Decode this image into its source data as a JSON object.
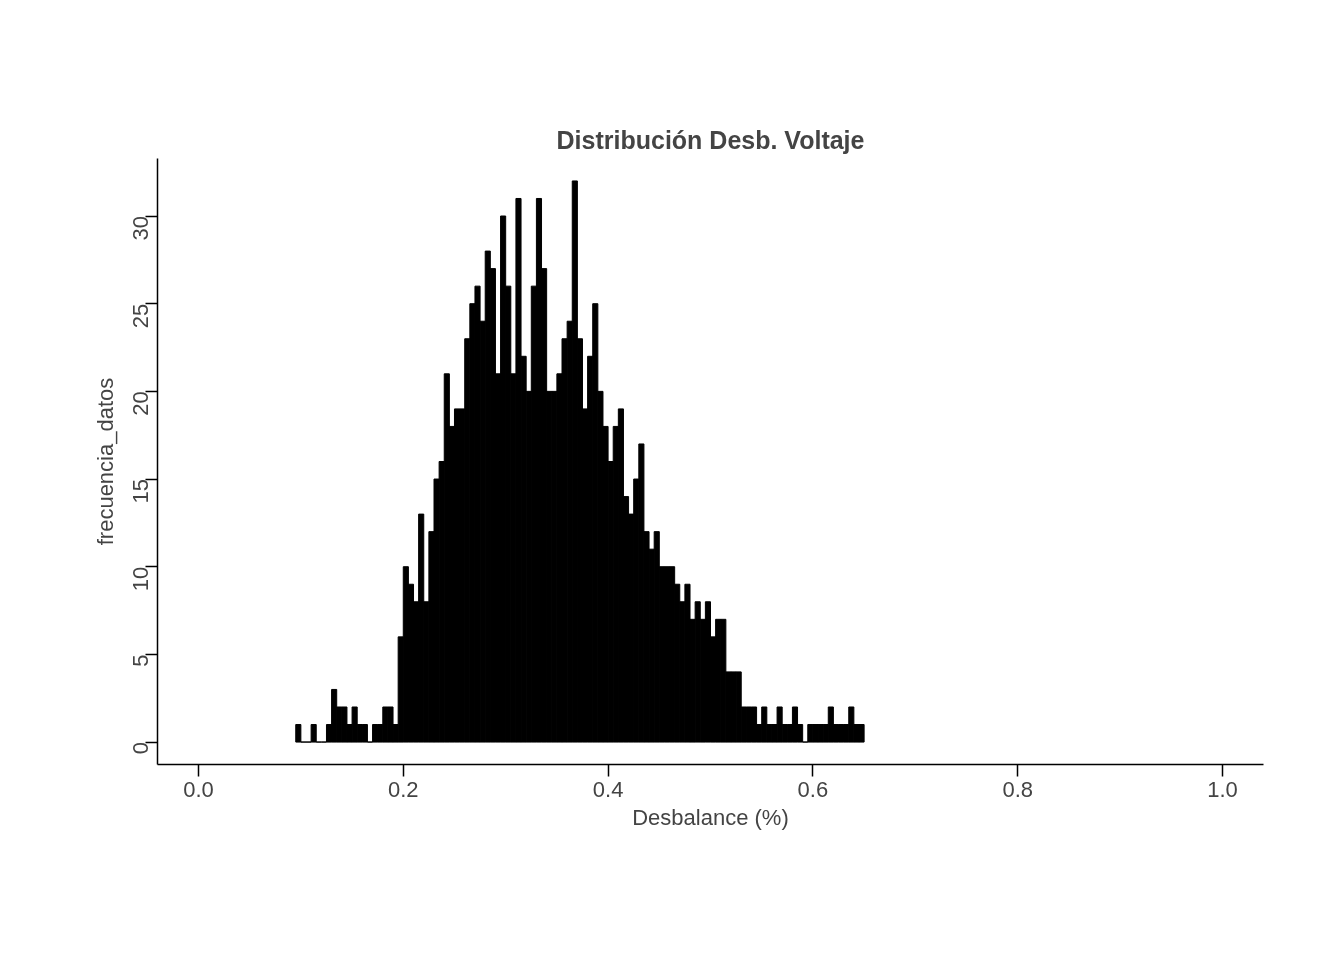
{
  "chart_data": {
    "type": "histogram",
    "title": "Distribución Desb. Voltaje",
    "xlabel": "Desbalance (%)",
    "ylabel": "frecuencia_datos",
    "bins": [
      0.095,
      0.1,
      0.105,
      0.11,
      0.115,
      0.12,
      0.125,
      0.13,
      0.135,
      0.14,
      0.145,
      0.15,
      0.155,
      0.16,
      0.165,
      0.17,
      0.175,
      0.18,
      0.185,
      0.19,
      0.195,
      0.2,
      0.205,
      0.21,
      0.215,
      0.22,
      0.225,
      0.23,
      0.235,
      0.24,
      0.245,
      0.25,
      0.255,
      0.26,
      0.265,
      0.27,
      0.275,
      0.28,
      0.285,
      0.29,
      0.295,
      0.3,
      0.305,
      0.31,
      0.315,
      0.32,
      0.325,
      0.33,
      0.335,
      0.34,
      0.345,
      0.35,
      0.355,
      0.36,
      0.365,
      0.37,
      0.375,
      0.38,
      0.385,
      0.39,
      0.395,
      0.4,
      0.405,
      0.41,
      0.415,
      0.42,
      0.425,
      0.43,
      0.435,
      0.44,
      0.445,
      0.45,
      0.455,
      0.46,
      0.465,
      0.47,
      0.475,
      0.48,
      0.485,
      0.49,
      0.495,
      0.5,
      0.505,
      0.51,
      0.515,
      0.52,
      0.525,
      0.53,
      0.535,
      0.54,
      0.545,
      0.55,
      0.555,
      0.56,
      0.565,
      0.57,
      0.575,
      0.58,
      0.585,
      0.59,
      0.595,
      0.6,
      0.605,
      0.61,
      0.615,
      0.62,
      0.625,
      0.63,
      0.635,
      0.64,
      0.645,
      0.65
    ],
    "values": [
      1,
      0,
      0,
      1,
      0,
      0,
      1,
      3,
      2,
      2,
      1,
      2,
      1,
      1,
      0,
      1,
      1,
      2,
      2,
      1,
      6,
      10,
      9,
      8,
      13,
      8,
      12,
      15,
      16,
      21,
      18,
      19,
      19,
      23,
      25,
      26,
      24,
      28,
      27,
      21,
      30,
      26,
      21,
      31,
      22,
      20,
      26,
      31,
      27,
      20,
      20,
      21,
      23,
      24,
      32,
      23,
      19,
      22,
      25,
      20,
      18,
      16,
      18,
      19,
      14,
      13,
      15,
      17,
      12,
      11,
      12,
      10,
      10,
      10,
      9,
      8,
      9,
      7,
      8,
      7,
      8,
      6,
      7,
      7,
      4,
      4,
      4,
      2,
      2,
      2,
      1,
      2,
      1,
      1,
      2,
      1,
      1,
      2,
      1,
      0,
      1,
      1,
      1,
      1,
      2,
      1,
      1,
      1,
      2,
      1,
      1
    ],
    "color": "#000000",
    "xlim": [
      -0.04,
      1.04
    ],
    "ylim": [
      -1.28,
      33.28
    ],
    "xticks": [
      {
        "value": 0,
        "label": "0.0"
      },
      0.2,
      0.4,
      0.6,
      0.8,
      {
        "value": 1,
        "label": "1.0"
      }
    ],
    "yticks": [
      0,
      5,
      10,
      15,
      20,
      25,
      30
    ],
    "grid": false
  }
}
